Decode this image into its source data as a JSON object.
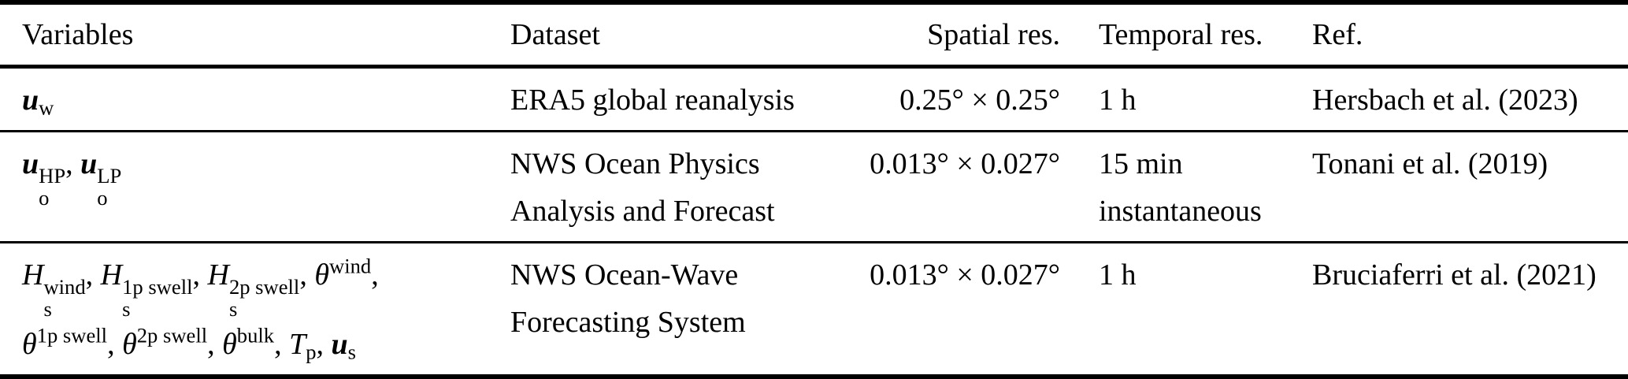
{
  "page": {
    "background": "#ffffff",
    "text_color": "#000000",
    "rule_color": "#000000"
  },
  "table": {
    "columns": [
      {
        "id": "variables",
        "label": "Variables"
      },
      {
        "id": "dataset",
        "label": "Dataset"
      },
      {
        "id": "spatial",
        "label": "Spatial res."
      },
      {
        "id": "temporal",
        "label": "Temporal res."
      },
      {
        "id": "ref",
        "label": "Ref."
      }
    ],
    "rows": [
      {
        "variables_math": [
          {
            "base": "u",
            "bold": true,
            "italic": true,
            "sub": "w"
          }
        ],
        "dataset_lines": [
          "ERA5 global reanalysis"
        ],
        "spatial_res": "0.25° × 0.25°",
        "temporal_lines": [
          "1 h"
        ],
        "ref": "Hersbach et al. (2023)"
      },
      {
        "variables_math": [
          {
            "base": "u",
            "bold": true,
            "italic": true,
            "sub": "o",
            "sup": "HP",
            "after": ", "
          },
          {
            "base": "u",
            "bold": true,
            "italic": true,
            "sub": "o",
            "sup": "LP"
          }
        ],
        "dataset_lines": [
          "NWS Ocean Physics",
          "Analysis and Forecast"
        ],
        "spatial_res": "0.013° × 0.027°",
        "temporal_lines": [
          "15 min",
          "instantaneous"
        ],
        "ref": "Tonani et al. (2019)"
      },
      {
        "variables_math": [
          {
            "base": "H",
            "italic": true,
            "sub": "s",
            "sup": "wind",
            "after": ", "
          },
          {
            "base": "H",
            "italic": true,
            "sub": "s",
            "sup": "1p swell",
            "after": ", "
          },
          {
            "base": "H",
            "italic": true,
            "sub": "s",
            "sup": "2p swell",
            "after": ", "
          },
          {
            "base": "θ",
            "italic": true,
            "sup": "wind",
            "after": ","
          },
          {
            "br": true
          },
          {
            "base": "θ",
            "italic": true,
            "sup": "1p swell",
            "after": ", "
          },
          {
            "base": "θ",
            "italic": true,
            "sup": "2p swell",
            "after": ", "
          },
          {
            "base": "θ",
            "italic": true,
            "sup": "bulk",
            "after": ", "
          },
          {
            "base": "T",
            "italic": true,
            "sub": "p",
            "after": ", "
          },
          {
            "base": "u",
            "bold": true,
            "italic": true,
            "sub": "s"
          }
        ],
        "dataset_lines": [
          "NWS Ocean-Wave",
          "Forecasting System"
        ],
        "spatial_res": "0.013° × 0.027°",
        "temporal_lines": [
          "1 h"
        ],
        "ref": "Bruciaferri et al. (2021)"
      }
    ]
  }
}
